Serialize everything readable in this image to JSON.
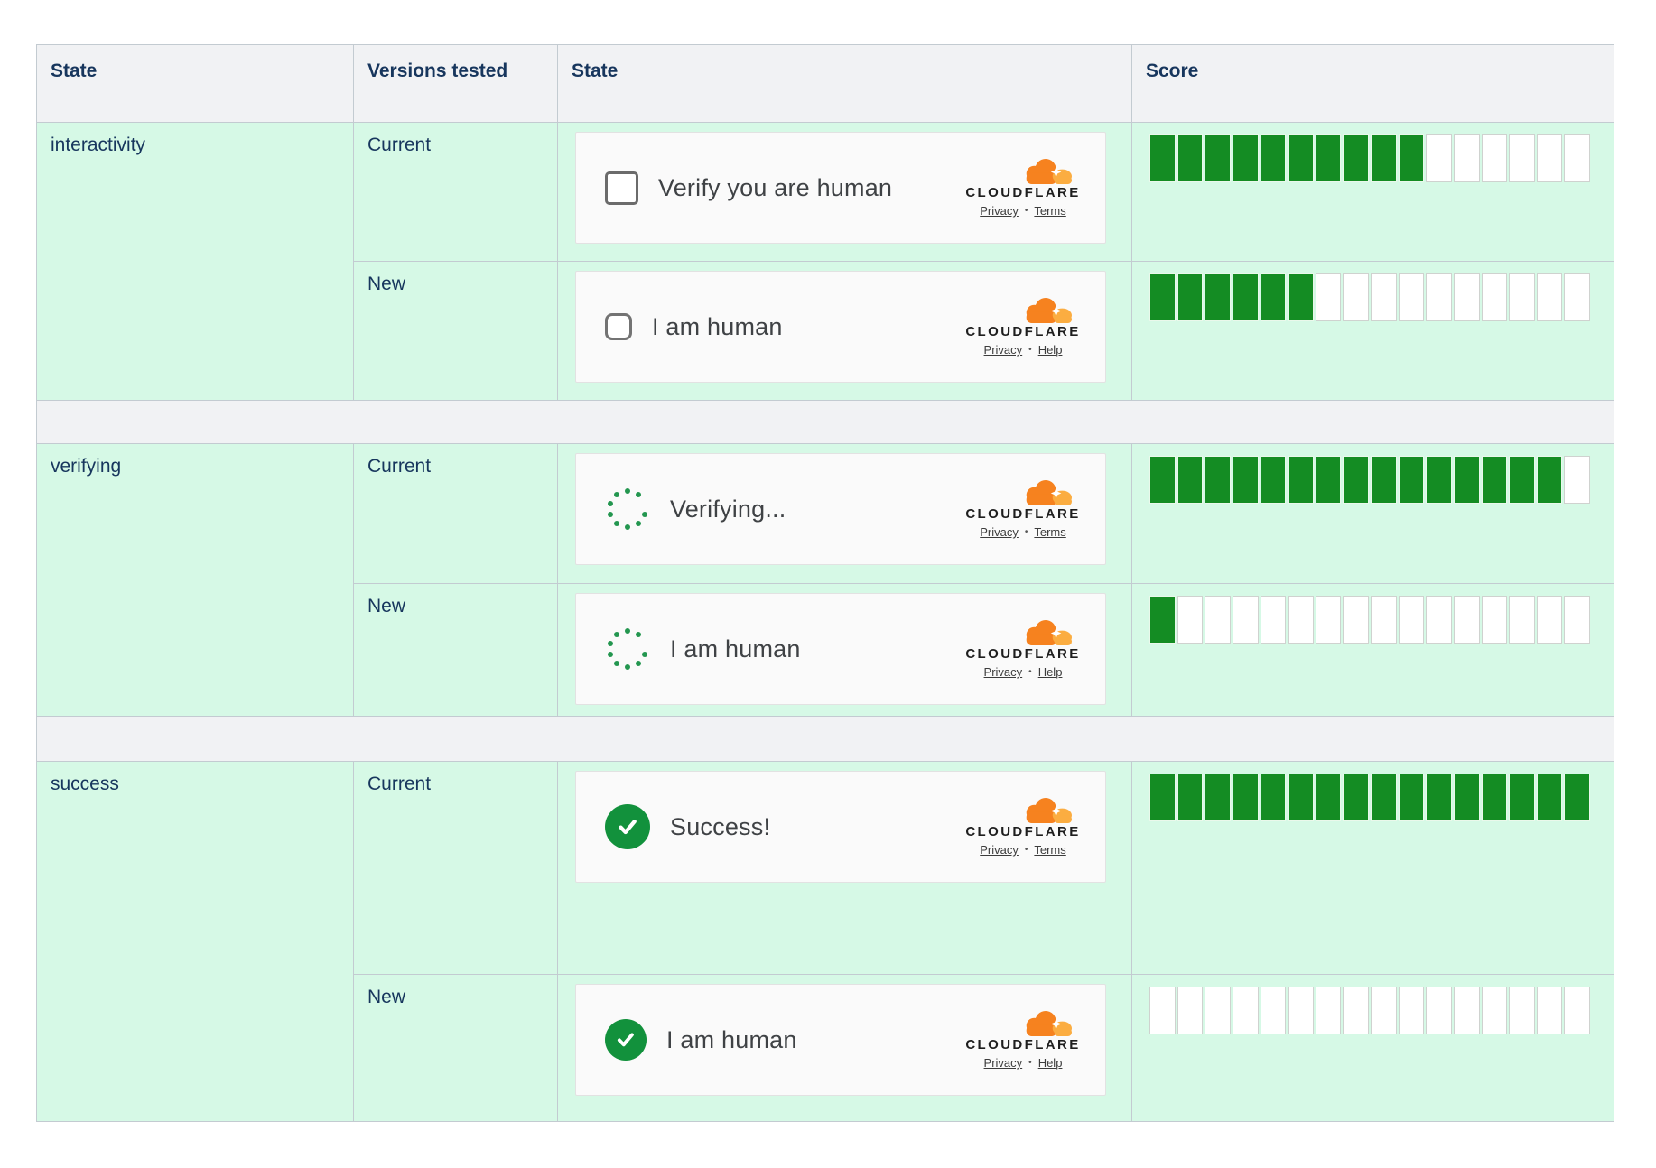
{
  "brand": {
    "wordmark": "CLOUDFLARE",
    "link_separator": "•"
  },
  "colors": {
    "mint": "#d6f9e6",
    "header_gray": "#f1f2f4",
    "line": "#c3cbd1",
    "navy": "#17365d",
    "accent_green": "#148c23",
    "success_green": "#12913c",
    "spinner_green": "#23964f",
    "cf_orange": "#f6821f",
    "cf_light_orange": "#fbad41"
  },
  "table": {
    "headers": [
      "State",
      "Versions tested",
      "State",
      "Score"
    ],
    "rows": [
      {
        "state": "interactivity",
        "version": "Current",
        "widget": {
          "icon": "checkbox",
          "label": "Verify you are human",
          "link_privacy": "Privacy",
          "link_secondary": "Terms"
        },
        "score": {
          "filled": 10,
          "total": 16
        }
      },
      {
        "version": "New",
        "widget": {
          "icon": "checkbox",
          "label": "I am human",
          "link_privacy": "Privacy",
          "link_secondary": "Help"
        },
        "score": {
          "filled": 6,
          "total": 16
        }
      },
      {
        "state": "verifying",
        "version": "Current",
        "widget": {
          "icon": "spinner",
          "label": "Verifying...",
          "link_privacy": "Privacy",
          "link_secondary": "Terms"
        },
        "score": {
          "filled": 15,
          "total": 16
        }
      },
      {
        "version": "New",
        "widget": {
          "icon": "spinner",
          "label": "I am human",
          "link_privacy": "Privacy",
          "link_secondary": "Help"
        },
        "score": {
          "filled": 1,
          "total": 16
        }
      },
      {
        "state": "success",
        "version": "Current",
        "widget": {
          "icon": "check",
          "label": "Success!",
          "link_privacy": "Privacy",
          "link_secondary": "Terms"
        },
        "score": {
          "filled": 16,
          "total": 16
        }
      },
      {
        "version": "New",
        "widget": {
          "icon": "check",
          "label": "I am human",
          "link_privacy": "Privacy",
          "link_secondary": "Help"
        },
        "score": {
          "filled": 0,
          "total": 16
        }
      }
    ]
  }
}
